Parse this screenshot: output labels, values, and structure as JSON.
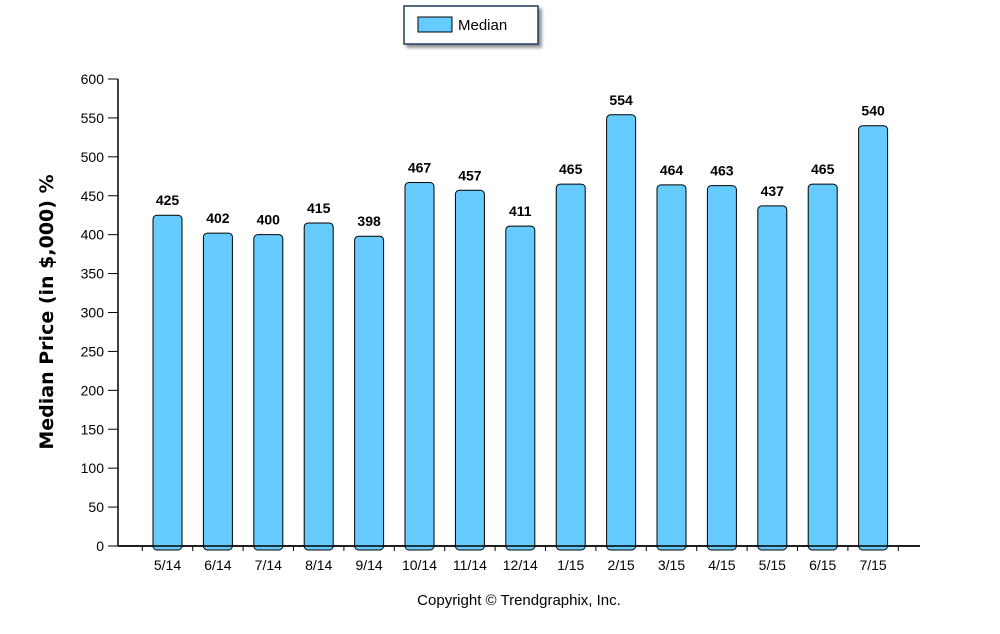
{
  "chart_data": {
    "type": "bar",
    "categories": [
      "5/14",
      "6/14",
      "7/14",
      "8/14",
      "9/14",
      "10/14",
      "11/14",
      "12/14",
      "1/15",
      "2/15",
      "3/15",
      "4/15",
      "5/15",
      "6/15",
      "7/15"
    ],
    "series": [
      {
        "name": "Median",
        "values": [
          425,
          402,
          400,
          415,
          398,
          467,
          457,
          411,
          465,
          554,
          464,
          463,
          437,
          465,
          540
        ]
      }
    ],
    "title": "",
    "xlabel": "",
    "ylabel": "Median Price (in $,000) %",
    "ylim": [
      0,
      600
    ],
    "yticks": [
      0,
      50,
      100,
      150,
      200,
      250,
      300,
      350,
      400,
      450,
      500,
      550,
      600
    ],
    "grid": false,
    "legend_position": "top-center",
    "bar_color": "#66ccff",
    "bar_stroke": "#000000",
    "annotations": [
      "Copyright © Trendgraphix, Inc."
    ]
  },
  "copyright": "Copyright © Trendgraphix, Inc."
}
